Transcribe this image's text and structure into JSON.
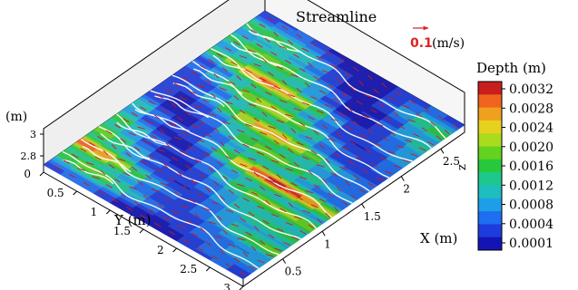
{
  "chart_data": {
    "type": "heatmap",
    "variant": "3d-surface-with-streamlines-and-velocity-vectors",
    "title": "",
    "streamline_label": "Streamline",
    "reference_vector": {
      "value": "0.1",
      "unit": "(m/s)",
      "color": "#dd2222"
    },
    "colorbar": {
      "title": "Depth (m)",
      "axis_letter": "z",
      "ticks": [
        "0.0032",
        "0.0028",
        "0.0024",
        "0.0020",
        "0.0016",
        "0.0012",
        "0.0008",
        "0.0004",
        "0.0001"
      ],
      "tick_values": [
        0.0032,
        0.0028,
        0.0024,
        0.002,
        0.0016,
        0.0012,
        0.0008,
        0.0004,
        0.0001
      ],
      "colors_top_to_bottom": [
        "#c81e1e",
        "#f0641e",
        "#f0a01e",
        "#e6d21e",
        "#aadc1e",
        "#64d21e",
        "#28c83c",
        "#1ec88c",
        "#1ebebe",
        "#1e9ee6",
        "#1e6ef0",
        "#1e3cdc",
        "#1414b4"
      ]
    },
    "axes": {
      "x": {
        "label": "X",
        "unit": "(m)",
        "ticks": [
          "0.5",
          "1",
          "1.5",
          "2",
          "2.5"
        ],
        "tick_values": [
          0.5,
          1,
          1.5,
          2,
          2.5
        ],
        "range": [
          0,
          2.8
        ]
      },
      "y": {
        "label": "Y",
        "unit": "(m)",
        "ticks": [
          "0",
          "0.5",
          "1",
          "1.5",
          "2",
          "2.5",
          "3"
        ],
        "tick_values": [
          0,
          0.5,
          1,
          1.5,
          2,
          2.5,
          3
        ],
        "range": [
          0,
          3
        ]
      },
      "z": {
        "label": "",
        "unit": "(m)",
        "ticks": [
          "2.8",
          "3"
        ],
        "tick_values": [
          2.8,
          3.0
        ],
        "range": [
          2.75,
          3.05
        ]
      }
    },
    "rills": [
      {
        "x": 0.22,
        "depth": 0.0014
      },
      {
        "x": 0.45,
        "depth": 0.0024
      },
      {
        "x": 0.68,
        "depth": 0.0016
      },
      {
        "x": 0.9,
        "depth": 0.002
      },
      {
        "x": 1.15,
        "depth": 0.003
      },
      {
        "x": 1.4,
        "depth": 0.0016
      },
      {
        "x": 1.62,
        "depth": 0.0022
      },
      {
        "x": 1.86,
        "depth": 0.0018
      },
      {
        "x": 2.1,
        "depth": 0.0024
      },
      {
        "x": 2.34,
        "depth": 0.0016
      },
      {
        "x": 2.58,
        "depth": 0.0014
      }
    ],
    "grid": false
  }
}
